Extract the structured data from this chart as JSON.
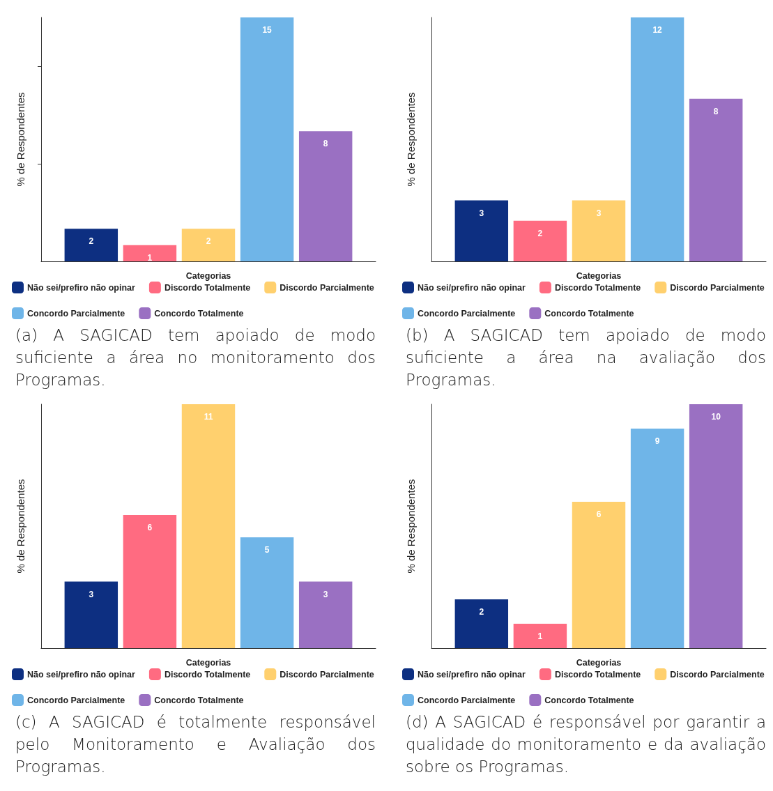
{
  "chart_data": [
    {
      "type": "bar",
      "xlabel": "Categorias",
      "ylabel": "% de Respondentes",
      "categories": [
        null
      ],
      "ylim": [
        0,
        15
      ],
      "yticks": [
        {
          "value": 6,
          "label": null
        },
        {
          "value": 12,
          "label": null
        }
      ],
      "data_labels": true,
      "legend": "bottom",
      "grid": false,
      "annotations": [
        "(a) A SAGICAD tem apoiado de modo suficiente a área no monitoramento dos Programas."
      ],
      "series": [
        {
          "name": "Não sei/prefiro não opinar",
          "color": "#0d2f81",
          "values": [
            2
          ]
        },
        {
          "name": "Discordo Totalmente",
          "color": "#ff6b81",
          "values": [
            1
          ]
        },
        {
          "name": "Discordo Parcialmente",
          "color": "#ffd06e",
          "values": [
            2
          ]
        },
        {
          "name": "Concordo Parcialmente",
          "color": "#6fb5e8",
          "values": [
            15
          ]
        },
        {
          "name": "Concordo Totalmente",
          "color": "#9a70c2",
          "values": [
            8
          ]
        }
      ]
    },
    {
      "type": "bar",
      "xlabel": "Categorias",
      "ylabel": "% de Respondentes",
      "categories": [
        null
      ],
      "ylim": [
        0,
        12
      ],
      "data_labels": true,
      "legend": "bottom",
      "grid": false,
      "annotations": [
        "(b) A SAGICAD tem apoiado de modo suficiente a área na avaliação dos Programas."
      ],
      "series": [
        {
          "name": "Não sei/prefiro não opinar",
          "color": "#0d2f81",
          "values": [
            3
          ]
        },
        {
          "name": "Discordo Totalmente",
          "color": "#ff6b81",
          "values": [
            2
          ]
        },
        {
          "name": "Discordo Parcialmente",
          "color": "#ffd06e",
          "values": [
            3
          ]
        },
        {
          "name": "Concordo Parcialmente",
          "color": "#6fb5e8",
          "values": [
            12
          ]
        },
        {
          "name": "Concordo Totalmente",
          "color": "#9a70c2",
          "values": [
            8
          ]
        }
      ]
    },
    {
      "type": "bar",
      "xlabel": "Categorias",
      "ylabel": "% de Respondentes",
      "categories": [
        null
      ],
      "ylim": [
        0,
        11
      ],
      "data_labels": true,
      "legend": "bottom",
      "grid": false,
      "annotations": [
        "(c) A SAGICAD é totalmente responsável pelo Monitoramento e Avaliação dos Programas."
      ],
      "series": [
        {
          "name": "Não sei/prefiro não opinar",
          "color": "#0d2f81",
          "values": [
            3
          ]
        },
        {
          "name": "Discordo Totalmente",
          "color": "#ff6b81",
          "values": [
            6
          ]
        },
        {
          "name": "Discordo Parcialmente",
          "color": "#ffd06e",
          "values": [
            11
          ]
        },
        {
          "name": "Concordo Parcialmente",
          "color": "#6fb5e8",
          "values": [
            5
          ]
        },
        {
          "name": "Concordo Totalmente",
          "color": "#9a70c2",
          "values": [
            3
          ]
        }
      ]
    },
    {
      "type": "bar",
      "xlabel": "Categorias",
      "ylabel": "% de Respondentes",
      "categories": [
        null
      ],
      "ylim": [
        0,
        10
      ],
      "data_labels": true,
      "legend": "bottom",
      "grid": false,
      "annotations": [
        "(d) A SAGICAD é responsável por garantir a qualidade do monitoramento e da avaliação sobre os Programas."
      ],
      "series": [
        {
          "name": "Não sei/prefiro não opinar",
          "color": "#0d2f81",
          "values": [
            2
          ]
        },
        {
          "name": "Discordo Totalmente",
          "color": "#ff6b81",
          "values": [
            1
          ]
        },
        {
          "name": "Discordo Parcialmente",
          "color": "#ffd06e",
          "values": [
            6
          ]
        },
        {
          "name": "Concordo Parcialmente",
          "color": "#6fb5e8",
          "values": [
            9
          ]
        },
        {
          "name": "Concordo Totalmente",
          "color": "#9a70c2",
          "values": [
            10
          ]
        }
      ]
    }
  ]
}
